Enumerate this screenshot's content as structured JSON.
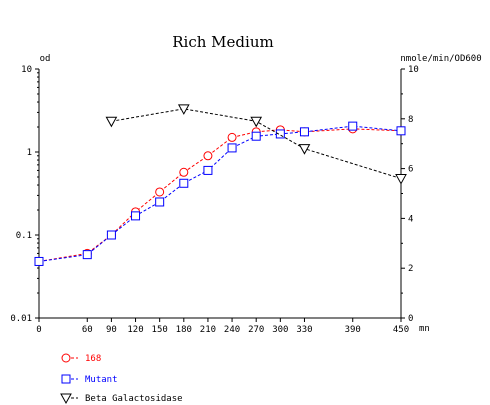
{
  "chart_data": {
    "type": "line",
    "title": "Rich Medium",
    "left_axis": {
      "label": "od",
      "scale": "log",
      "range": [
        0.01,
        10
      ],
      "ticks": [
        {
          "value": 0.01,
          "label": "0.01"
        },
        {
          "value": 0.1,
          "label": "0.1"
        },
        {
          "value": 1,
          "label": "1"
        },
        {
          "value": 10,
          "label": "10"
        }
      ]
    },
    "right_axis": {
      "label": "nmole/min/OD600",
      "scale": "linear",
      "range": [
        0,
        10
      ],
      "ticks": [
        {
          "value": 0,
          "label": "0"
        },
        {
          "value": 2,
          "label": "2"
        },
        {
          "value": 4,
          "label": "4"
        },
        {
          "value": 6,
          "label": "6"
        },
        {
          "value": 8,
          "label": "8"
        },
        {
          "value": 10,
          "label": "10"
        }
      ]
    },
    "x_axis": {
      "label": "mn",
      "range": [
        0,
        450
      ],
      "ticks": [
        {
          "value": 0,
          "label": "0"
        },
        {
          "value": 60,
          "label": "60"
        },
        {
          "value": 90,
          "label": "90"
        },
        {
          "value": 120,
          "label": "120"
        },
        {
          "value": 150,
          "label": "150"
        },
        {
          "value": 180,
          "label": "180"
        },
        {
          "value": 210,
          "label": "210"
        },
        {
          "value": 240,
          "label": "240"
        },
        {
          "value": 270,
          "label": "270"
        },
        {
          "value": 300,
          "label": "300"
        },
        {
          "value": 330,
          "label": "330"
        },
        {
          "value": 390,
          "label": "390"
        },
        {
          "value": 450,
          "label": "450"
        }
      ]
    },
    "grid": false,
    "legend_position": "bottom-left",
    "series": [
      {
        "name": "168",
        "axis": "left",
        "marker": "circle",
        "color": "#ff0000",
        "x": [
          0,
          60,
          90,
          120,
          150,
          180,
          210,
          240,
          270,
          300,
          330,
          390,
          450
        ],
        "y": [
          0.048,
          0.06,
          0.1,
          0.19,
          0.33,
          0.57,
          0.9,
          1.5,
          1.75,
          1.85,
          1.75,
          1.9,
          1.8
        ]
      },
      {
        "name": "Mutant",
        "axis": "left",
        "marker": "square",
        "color": "#0000ff",
        "x": [
          0,
          60,
          90,
          120,
          150,
          180,
          210,
          240,
          270,
          300,
          330,
          390,
          450
        ],
        "y": [
          0.048,
          0.058,
          0.1,
          0.17,
          0.25,
          0.42,
          0.6,
          1.12,
          1.55,
          1.65,
          1.75,
          2.05,
          1.8
        ]
      },
      {
        "name": "Beta Galactosidase",
        "axis": "right",
        "marker": "triangle-down",
        "color": "#000000",
        "x": [
          90,
          180,
          270,
          330,
          450
        ],
        "y": [
          7.9,
          8.4,
          7.9,
          6.8,
          5.6
        ]
      }
    ]
  }
}
